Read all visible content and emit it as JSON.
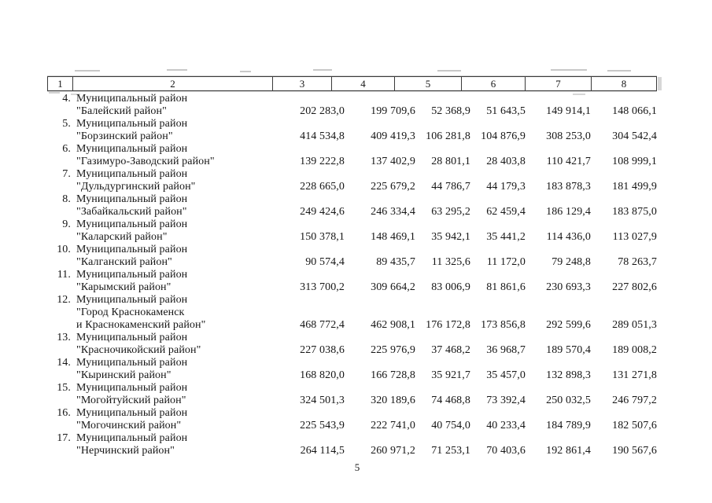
{
  "page": {
    "number": "5"
  },
  "table": {
    "header": [
      "1",
      "2",
      "3",
      "4",
      "5",
      "6",
      "7",
      "8"
    ],
    "rows": [
      {
        "idx": "4.",
        "name_lines": [
          "Муниципальный район",
          "\"Балейский район\""
        ],
        "values": [
          "202 283,0",
          "199 709,6",
          "52 368,9",
          "51 643,5",
          "149 914,1",
          "148 066,1"
        ]
      },
      {
        "idx": "5.",
        "name_lines": [
          "Муниципальный район",
          "\"Борзинский район\""
        ],
        "values": [
          "414 534,8",
          "409 419,3",
          "106 281,8",
          "104 876,9",
          "308 253,0",
          "304 542,4"
        ]
      },
      {
        "idx": "6.",
        "name_lines": [
          "Муниципальный район",
          "\"Газимуро-Заводский район\""
        ],
        "values": [
          "139 222,8",
          "137 402,9",
          "28 801,1",
          "28 403,8",
          "110 421,7",
          "108 999,1"
        ]
      },
      {
        "idx": "7.",
        "name_lines": [
          "Муниципальный район",
          "\"Дульдургинский район\""
        ],
        "values": [
          "228 665,0",
          "225 679,2",
          "44 786,7",
          "44 179,3",
          "183 878,3",
          "181 499,9"
        ]
      },
      {
        "idx": "8.",
        "name_lines": [
          "Муниципальный район",
          "\"Забайкальский район\""
        ],
        "values": [
          "249 424,6",
          "246 334,4",
          "63 295,2",
          "62 459,4",
          "186 129,4",
          "183 875,0"
        ]
      },
      {
        "idx": "9.",
        "name_lines": [
          "Муниципальный район",
          "\"Каларский район\""
        ],
        "values": [
          "150 378,1",
          "148 469,1",
          "35 942,1",
          "35 441,2",
          "114 436,0",
          "113 027,9"
        ]
      },
      {
        "idx": "10.",
        "name_lines": [
          "Муниципальный район",
          "\"Калганский район\""
        ],
        "values": [
          "90 574,4",
          "89 435,7",
          "11 325,6",
          "11 172,0",
          "79 248,8",
          "78 263,7"
        ]
      },
      {
        "idx": "11.",
        "name_lines": [
          "Муниципальный район",
          "\"Карымский район\""
        ],
        "values": [
          "313 700,2",
          "309 664,2",
          "83 006,9",
          "81 861,6",
          "230 693,3",
          "227 802,6"
        ]
      },
      {
        "idx": "12.",
        "name_lines": [
          "Муниципальный район",
          "\"Город Краснокаменск",
          "и Краснокаменский район\""
        ],
        "values": [
          "468 772,4",
          "462 908,1",
          "176 172,8",
          "173 856,8",
          "292 599,6",
          "289 051,3"
        ]
      },
      {
        "idx": "13.",
        "name_lines": [
          "Муниципальный район",
          "\"Красночикойский район\""
        ],
        "values": [
          "227 038,6",
          "225 976,9",
          "37 468,2",
          "36 968,7",
          "189 570,4",
          "189 008,2"
        ]
      },
      {
        "idx": "14.",
        "name_lines": [
          "Муниципальный район",
          "\"Кыринский район\""
        ],
        "values": [
          "168 820,0",
          "166 728,8",
          "35 921,7",
          "35 457,0",
          "132 898,3",
          "131 271,8"
        ]
      },
      {
        "idx": "15.",
        "name_lines": [
          "Муниципальный район",
          "\"Могойтуйский район\""
        ],
        "values": [
          "324 501,3",
          "320 189,6",
          "74 468,8",
          "73 392,4",
          "250 032,5",
          "246 797,2"
        ]
      },
      {
        "idx": "16.",
        "name_lines": [
          "Муниципальный район",
          "\"Могочинский район\""
        ],
        "values": [
          "225 543,9",
          "222 741,0",
          "40 754,0",
          "40 233,4",
          "184 789,9",
          "182 507,6"
        ]
      },
      {
        "idx": "17.",
        "name_lines": [
          "Муниципальный район",
          "\"Нерчинский район\""
        ],
        "values": [
          "264 114,5",
          "260 971,2",
          "71 253,1",
          "70 403,6",
          "192 861,4",
          "190 567,6"
        ]
      }
    ]
  }
}
